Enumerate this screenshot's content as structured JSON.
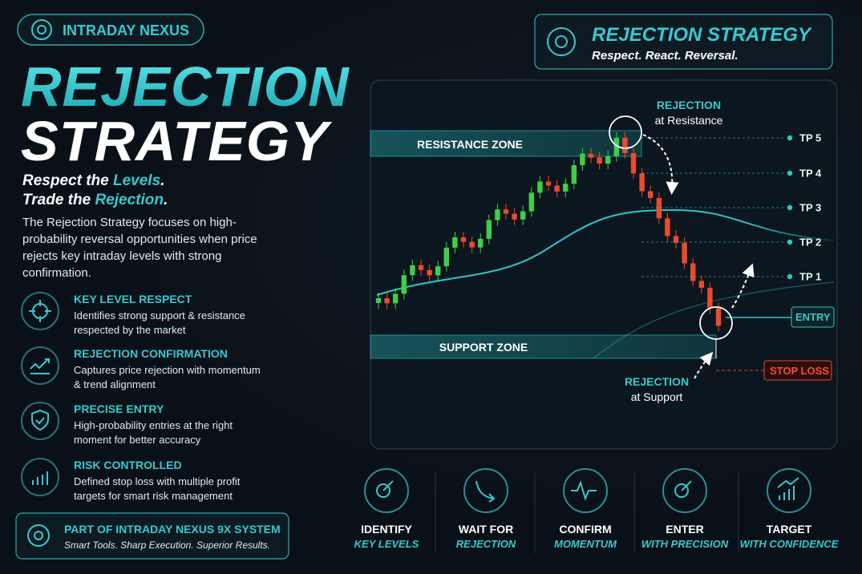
{
  "badge": "INTRADAY NEXUS",
  "title": {
    "line1": "REJECTION",
    "line2": "STRATEGY"
  },
  "tagline": {
    "line1": [
      "Respect the ",
      "Levels",
      "."
    ],
    "line2": [
      "Trade the ",
      "Rejection",
      "."
    ]
  },
  "description": "The Rejection Strategy focuses on high-probability reversal opportunities when price rejects key intraday levels with strong confirmation.",
  "features": [
    {
      "title": "KEY LEVEL RESPECT",
      "text": "Identifies strong support & resistance respected by the market"
    },
    {
      "title": "REJECTION CONFIRMATION",
      "text": "Captures price rejection with momentum & trend alignment"
    },
    {
      "title": "PRECISE ENTRY",
      "text": "High-probability entries at the right moment for better accuracy"
    },
    {
      "title": "RISK CONTROLLED",
      "text": "Defined stop loss with multiple profit targets for smart risk management"
    }
  ],
  "footer_badge": {
    "title": "PART OF INTRADAY NEXUS 9X SYSTEM",
    "subtitle": "Smart Tools. Sharp Execution. Superior Results."
  },
  "header_card": {
    "title": "REJECTION STRATEGY",
    "subtitle": "Respect. React. Reversal."
  },
  "diagram": {
    "resistance_zone": "RESISTANCE ZONE",
    "support_zone": "SUPPORT ZONE",
    "rejection_top": {
      "title": "REJECTION",
      "subtitle": "at Resistance"
    },
    "rejection_bottom": {
      "title": "REJECTION",
      "subtitle": "at Support"
    },
    "targets": [
      "TP 5",
      "TP 4",
      "TP 3",
      "TP 2",
      "TP 1"
    ],
    "entry": "ENTRY",
    "stop_loss": "STOP LOSS"
  },
  "steps": [
    {
      "title": "IDENTIFY",
      "subtitle": "KEY LEVELS"
    },
    {
      "title": "WAIT FOR",
      "subtitle": "REJECTION"
    },
    {
      "title": "CONFIRM",
      "subtitle": "MOMENTUM"
    },
    {
      "title": "ENTER",
      "subtitle": "WITH PRECISION"
    },
    {
      "title": "TARGET",
      "subtitle": "WITH CONFIDENCE"
    }
  ]
}
